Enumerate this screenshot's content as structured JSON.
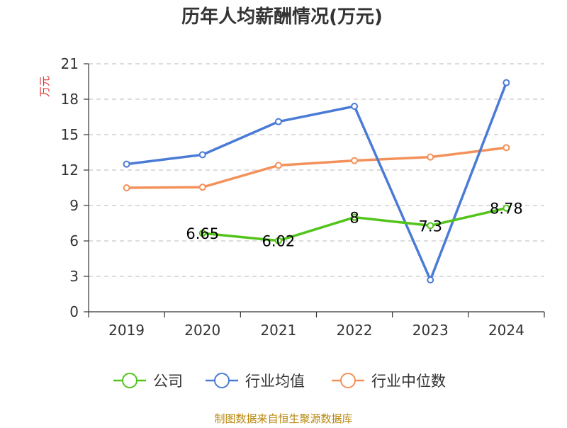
{
  "chart_data": {
    "type": "line",
    "title": "历年人均薪酬情况(万元)",
    "ylabel": "万元",
    "xlabel": "",
    "categories": [
      "2019",
      "2020",
      "2021",
      "2022",
      "2023",
      "2024"
    ],
    "ylim": [
      0,
      21
    ],
    "yticks": [
      0,
      3,
      6,
      9,
      12,
      15,
      18,
      21
    ],
    "grid": true,
    "legend_position": "bottom",
    "series": [
      {
        "name": "公司",
        "color": "#52c41a",
        "values": [
          null,
          6.65,
          6.02,
          8,
          7.3,
          8.78
        ],
        "labels": [
          "",
          "6.65",
          "6.02",
          "8",
          "7.3",
          "8.78"
        ]
      },
      {
        "name": "行业均值",
        "color": "#4a7bd6",
        "values": [
          12.5,
          13.3,
          16.1,
          17.4,
          2.7,
          19.4
        ],
        "labels": null
      },
      {
        "name": "行业中位数",
        "color": "#f4915a",
        "values": [
          10.5,
          10.55,
          12.4,
          12.8,
          13.1,
          13.9
        ],
        "labels": null
      }
    ],
    "source": "制图数据来自恒生聚源数据库"
  }
}
